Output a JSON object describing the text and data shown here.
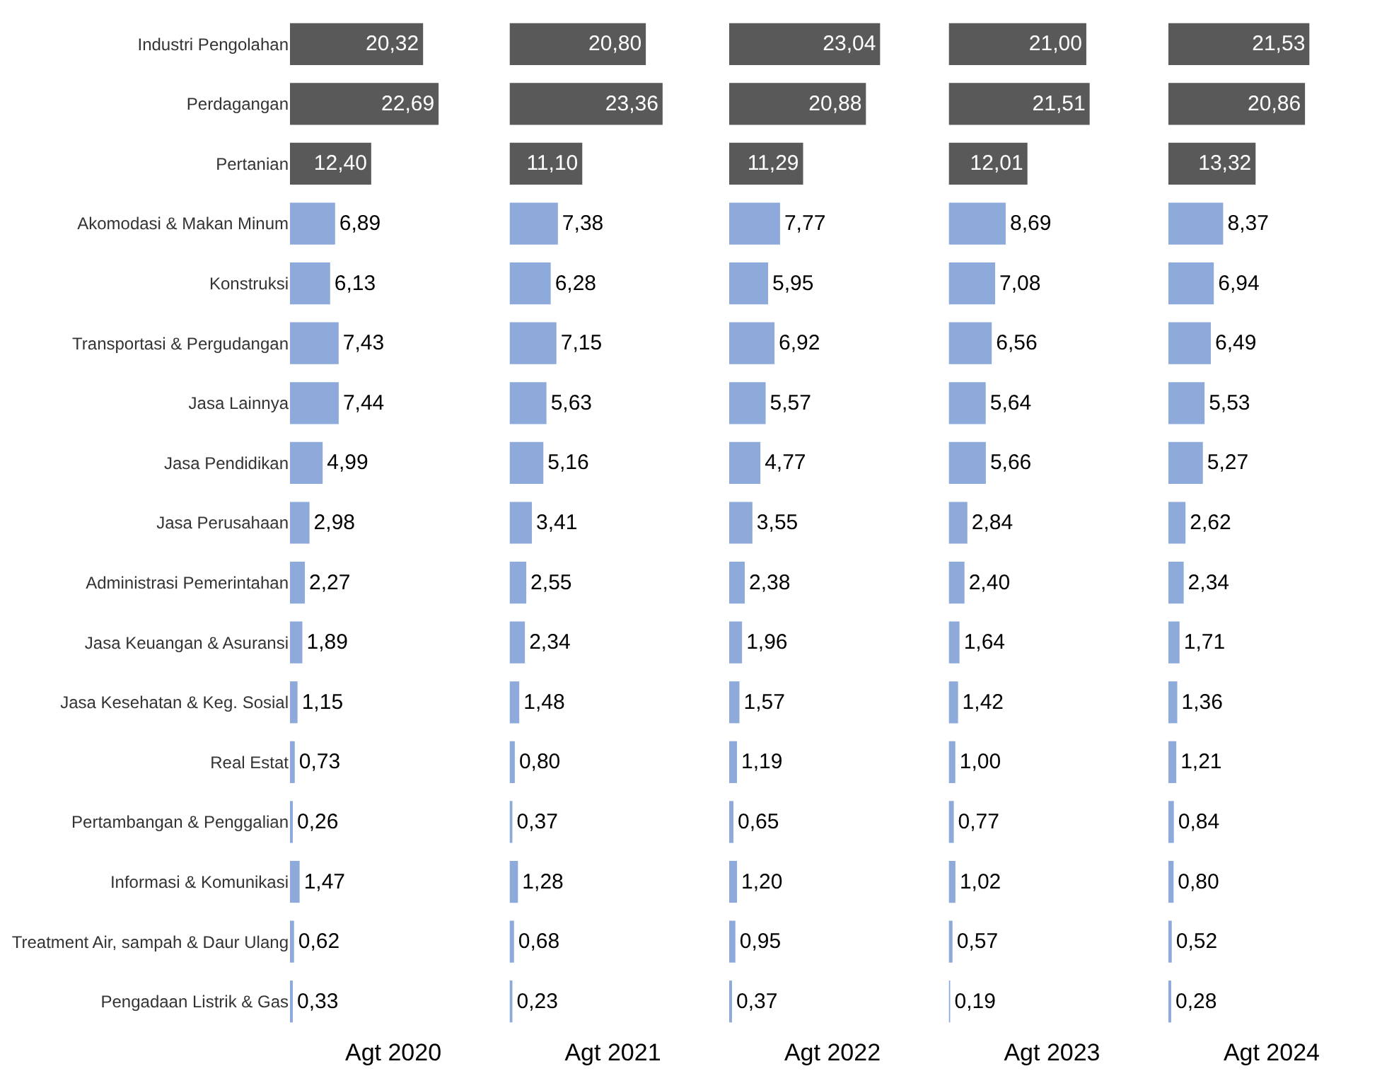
{
  "chart_data": [
    {
      "type": "bar",
      "orientation": "horizontal",
      "xlabel": "Agt 2020",
      "tick_labels": "y",
      "categories": [
        "Industri Pengolahan",
        "Perdagangan",
        "Pertanian",
        "Akomodasi & Makan Minum",
        "Konstruksi",
        "Transportasi & Pergudangan",
        "Jasa Lainnya",
        "Jasa Pendidikan",
        "Jasa Perusahaan",
        "Administrasi Pemerintahan",
        "Jasa Keuangan & Asuransi",
        "Jasa Kesehatan & Keg. Sosial",
        "Real Estat",
        "Pertambangan & Penggalian",
        "Informasi & Komunikasi",
        "Treatment Air, sampah & Daur Ulang",
        "Pengadaan Listrik & Gas"
      ],
      "values": [
        20.32,
        22.69,
        12.4,
        6.89,
        6.13,
        7.43,
        7.44,
        4.99,
        2.98,
        2.27,
        1.89,
        1.15,
        0.73,
        0.26,
        1.47,
        0.62,
        0.33
      ],
      "value_labels": [
        "20,32",
        "22,69",
        "12,40",
        "6,89",
        "6,13",
        "7,43",
        "7,44",
        "4,99",
        "2,98",
        "2,27",
        "1,89",
        "1,15",
        "0,73",
        "0,26",
        "1,47",
        "0,62",
        "0,33"
      ],
      "colors": [
        "#595959",
        "#595959",
        "#595959",
        "#8eaadb",
        "#8eaadb",
        "#8eaadb",
        "#8eaadb",
        "#8eaadb",
        "#8eaadb",
        "#8eaadb",
        "#8eaadb",
        "#8eaadb",
        "#8eaadb",
        "#8eaadb",
        "#8eaadb",
        "#8eaadb",
        "#8eaadb"
      ]
    },
    {
      "type": "bar",
      "orientation": "horizontal",
      "xlabel": "Agt 2021",
      "tick_labels": false,
      "categories": [
        null,
        null,
        null,
        null,
        null,
        null,
        null,
        null,
        null,
        null,
        null,
        null,
        null,
        null,
        null,
        null,
        null
      ],
      "values": [
        20.8,
        23.36,
        11.1,
        7.38,
        6.28,
        7.15,
        5.63,
        5.16,
        3.41,
        2.55,
        2.34,
        1.48,
        0.8,
        0.37,
        1.28,
        0.68,
        0.23
      ],
      "value_labels": [
        "20,80",
        "23,36",
        "11,10",
        "7,38",
        "6,28",
        "7,15",
        "5,63",
        "5,16",
        "3,41",
        "2,55",
        "2,34",
        "1,48",
        "0,80",
        "0,37",
        "1,28",
        "0,68",
        "0,23"
      ],
      "colors": [
        "#595959",
        "#595959",
        "#595959",
        "#8eaadb",
        "#8eaadb",
        "#8eaadb",
        "#8eaadb",
        "#8eaadb",
        "#8eaadb",
        "#8eaadb",
        "#8eaadb",
        "#8eaadb",
        "#8eaadb",
        "#8eaadb",
        "#8eaadb",
        "#8eaadb",
        "#8eaadb"
      ]
    },
    {
      "type": "bar",
      "orientation": "horizontal",
      "xlabel": "Agt 2022",
      "tick_labels": false,
      "categories": [
        null,
        null,
        null,
        null,
        null,
        null,
        null,
        null,
        null,
        null,
        null,
        null,
        null,
        null,
        null,
        null,
        null
      ],
      "values": [
        23.04,
        20.88,
        11.29,
        7.77,
        5.95,
        6.92,
        5.57,
        4.77,
        3.55,
        2.38,
        1.96,
        1.57,
        1.19,
        0.65,
        1.2,
        0.95,
        0.37
      ],
      "value_labels": [
        "23,04",
        "20,88",
        "11,29",
        "7,77",
        "5,95",
        "6,92",
        "5,57",
        "4,77",
        "3,55",
        "2,38",
        "1,96",
        "1,57",
        "1,19",
        "0,65",
        "1,20",
        "0,95",
        "0,37"
      ],
      "colors": [
        "#595959",
        "#595959",
        "#595959",
        "#8eaadb",
        "#8eaadb",
        "#8eaadb",
        "#8eaadb",
        "#8eaadb",
        "#8eaadb",
        "#8eaadb",
        "#8eaadb",
        "#8eaadb",
        "#8eaadb",
        "#8eaadb",
        "#8eaadb",
        "#8eaadb",
        "#8eaadb"
      ]
    },
    {
      "type": "bar",
      "orientation": "horizontal",
      "xlabel": "Agt 2023",
      "tick_labels": false,
      "categories": [
        null,
        null,
        null,
        null,
        null,
        null,
        null,
        null,
        null,
        null,
        null,
        null,
        null,
        null,
        null,
        null,
        null
      ],
      "values": [
        21.0,
        21.51,
        12.01,
        8.69,
        7.08,
        6.56,
        5.64,
        5.66,
        2.84,
        2.4,
        1.64,
        1.42,
        1.0,
        0.77,
        1.02,
        0.57,
        0.19
      ],
      "value_labels": [
        "21,00",
        "21,51",
        "12,01",
        "8,69",
        "7,08",
        "6,56",
        "5,64",
        "5,66",
        "2,84",
        "2,40",
        "1,64",
        "1,42",
        "1,00",
        "0,77",
        "1,02",
        "0,57",
        "0,19"
      ],
      "colors": [
        "#595959",
        "#595959",
        "#595959",
        "#8eaadb",
        "#8eaadb",
        "#8eaadb",
        "#8eaadb",
        "#8eaadb",
        "#8eaadb",
        "#8eaadb",
        "#8eaadb",
        "#8eaadb",
        "#8eaadb",
        "#8eaadb",
        "#8eaadb",
        "#8eaadb",
        "#8eaadb"
      ]
    },
    {
      "type": "bar",
      "orientation": "horizontal",
      "xlabel": "Agt 2024",
      "tick_labels": false,
      "categories": [
        null,
        null,
        null,
        null,
        null,
        null,
        null,
        null,
        null,
        null,
        null,
        null,
        null,
        null,
        null,
        null,
        null
      ],
      "values": [
        21.53,
        20.86,
        13.32,
        8.37,
        6.94,
        6.49,
        5.53,
        5.27,
        2.62,
        2.34,
        1.71,
        1.36,
        1.21,
        0.84,
        0.8,
        0.52,
        0.28
      ],
      "value_labels": [
        "21,53",
        "20,86",
        "13,32",
        "8,37",
        "6,94",
        "6,49",
        "5,53",
        "5,27",
        "2,62",
        "2,34",
        "1,71",
        "1,36",
        "1,21",
        "0,84",
        "0,80",
        "0,52",
        "0,28"
      ],
      "colors": [
        "#595959",
        "#595959",
        "#595959",
        "#8eaadb",
        "#8eaadb",
        "#8eaadb",
        "#8eaadb",
        "#8eaadb",
        "#8eaadb",
        "#8eaadb",
        "#8eaadb",
        "#8eaadb",
        "#8eaadb",
        "#8eaadb",
        "#8eaadb",
        "#8eaadb",
        "#8eaadb"
      ]
    }
  ]
}
